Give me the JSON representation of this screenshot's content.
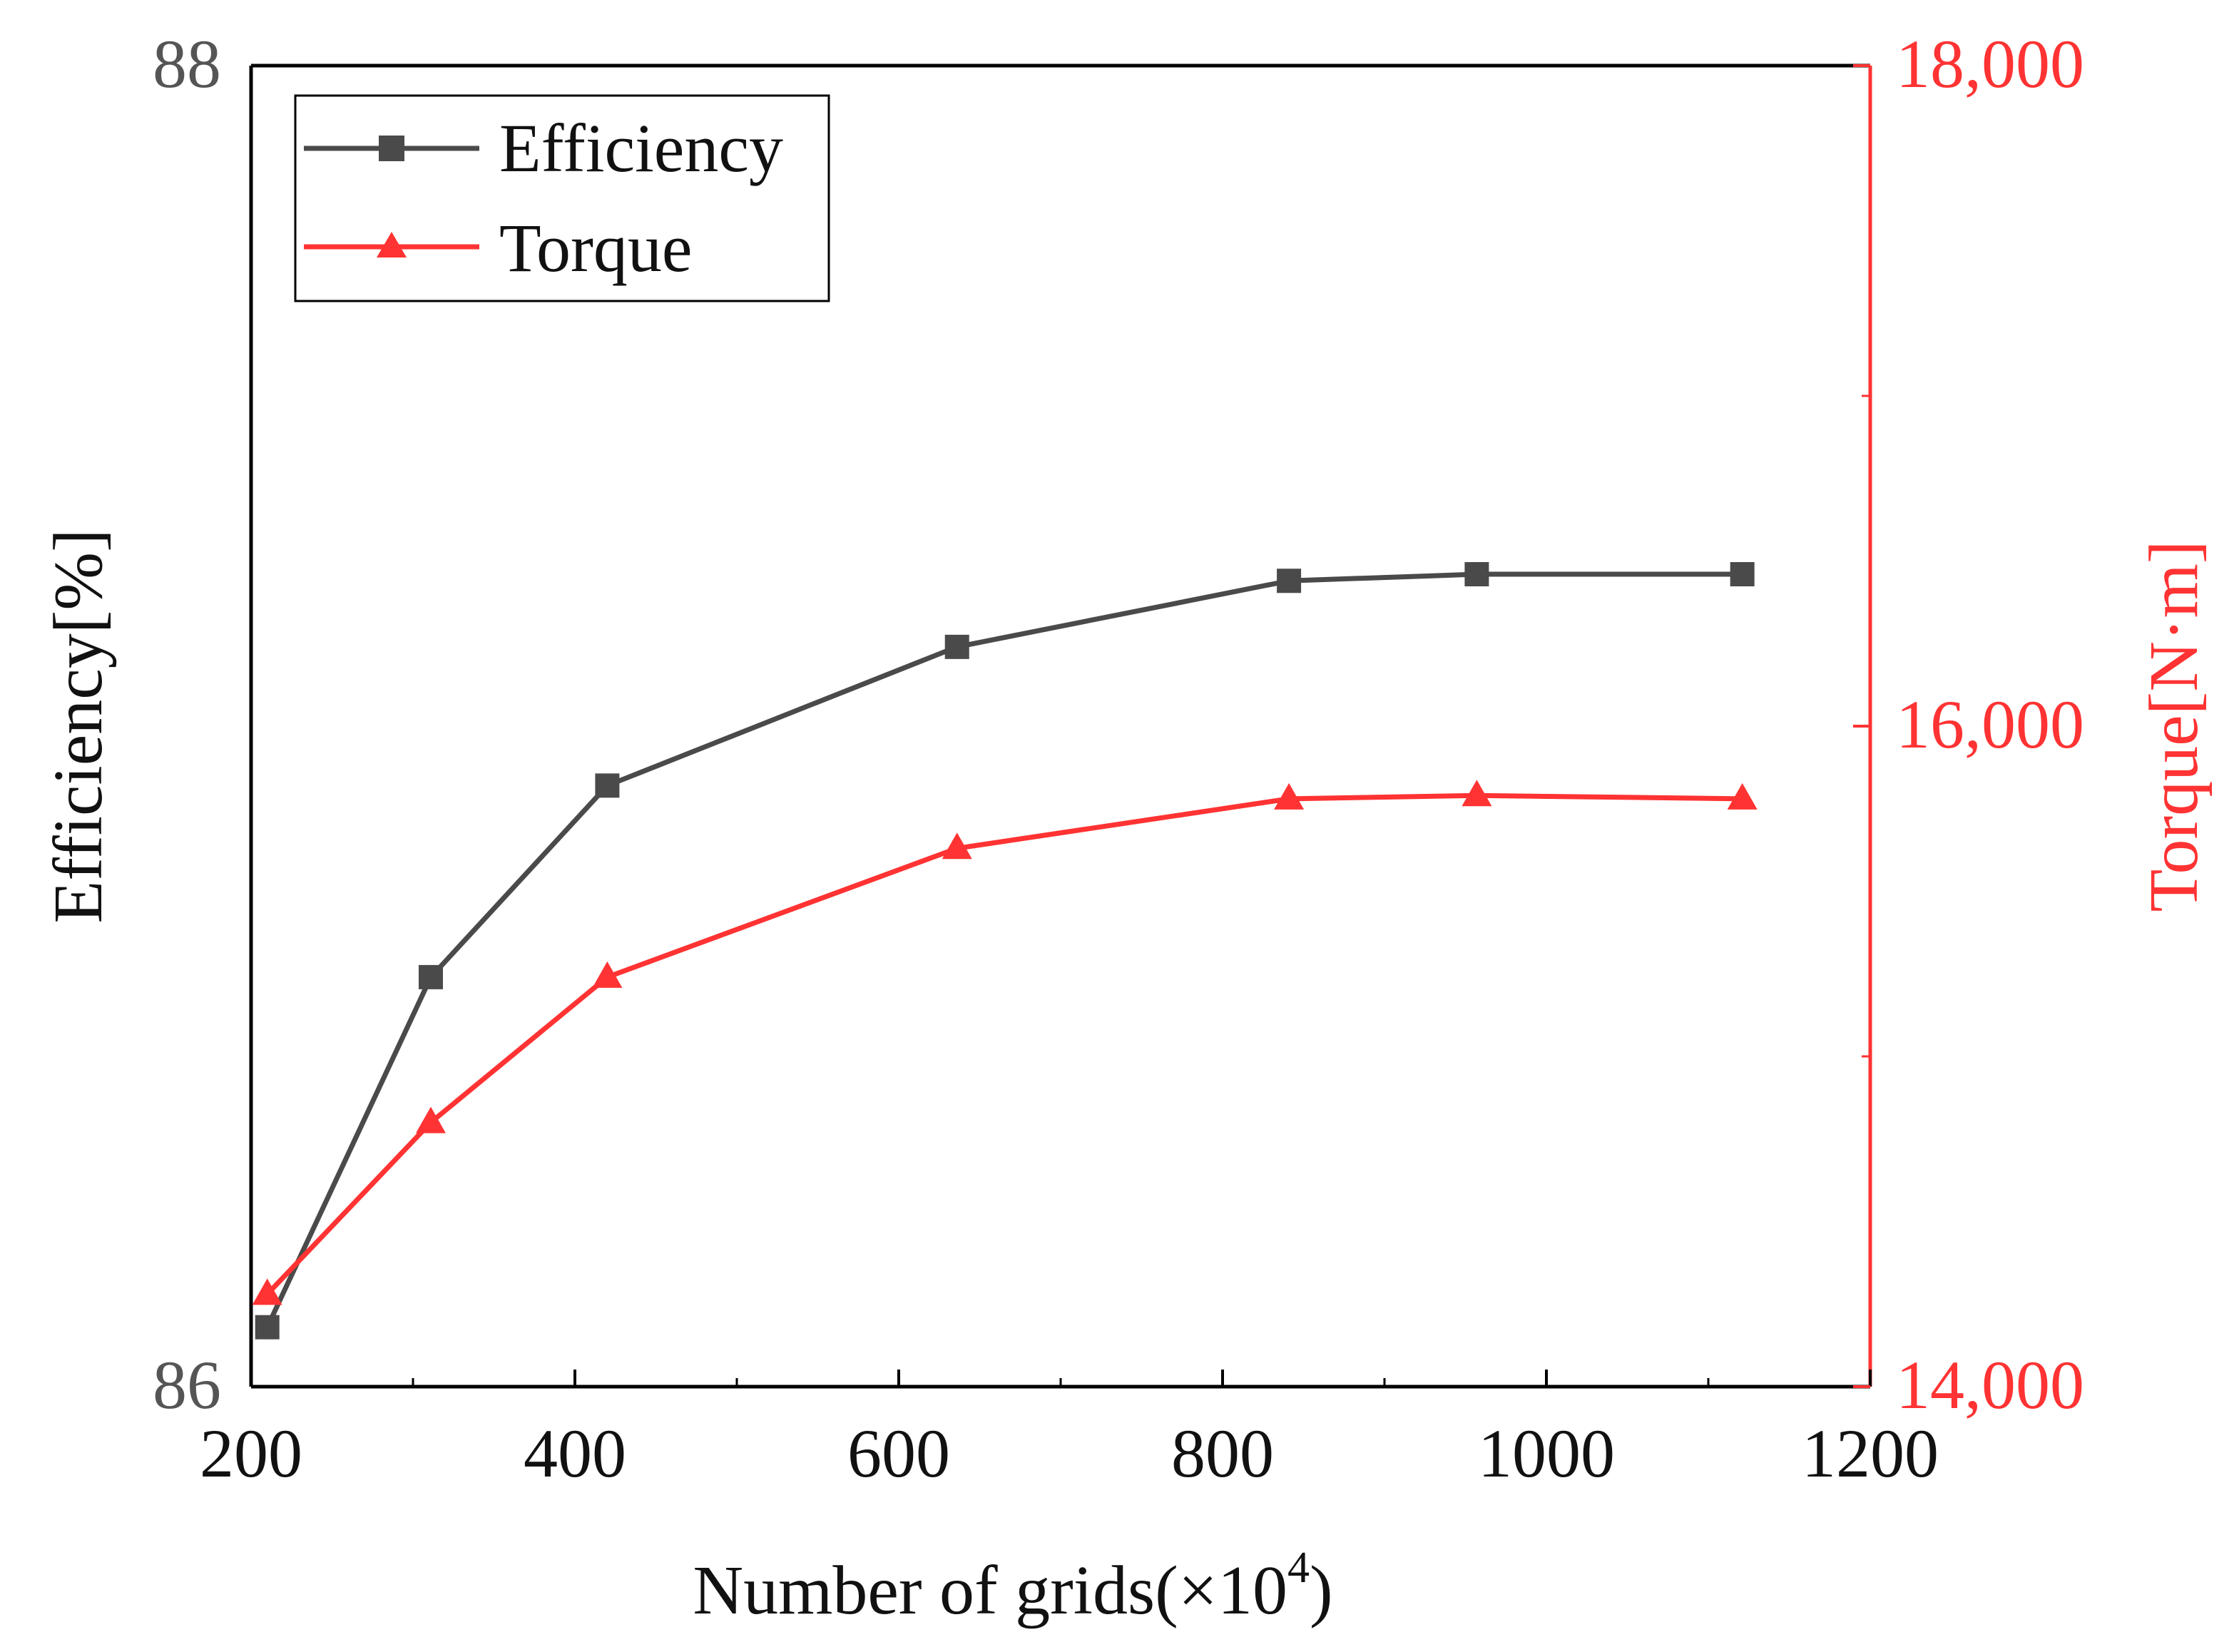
{
  "chart_data": {
    "type": "line",
    "title": "",
    "xlabel": "Number of grids(×10",
    "xlabel_exponent": "4",
    "xlabel_suffix": ")",
    "ylabel_left": "Efficiency[%]",
    "ylabel_right": "Torque[N·m]",
    "xlim": [
      200,
      1200
    ],
    "ylim_left": [
      86,
      88
    ],
    "ylim_right": [
      14000,
      18000
    ],
    "x_ticks": [
      200,
      400,
      600,
      800,
      1000,
      1200
    ],
    "x_tick_labels": [
      "200",
      "400",
      "600",
      "800",
      "1000",
      "1200"
    ],
    "y_left_ticks": [
      86,
      88
    ],
    "y_left_tick_labels": [
      "86",
      "88"
    ],
    "y_right_ticks": [
      14000,
      16000,
      18000
    ],
    "y_right_tick_labels": [
      "14,000",
      "16,000",
      "18,000"
    ],
    "grid": false,
    "legend_position": "top-left",
    "series": [
      {
        "name": "Efficiency",
        "axis": "left",
        "color": "#4a4a4a",
        "marker": "square",
        "x": [
          210,
          311,
          420,
          636,
          841,
          957,
          1121
        ],
        "values": [
          86.09,
          86.62,
          86.91,
          87.12,
          87.22,
          87.23,
          87.23
        ]
      },
      {
        "name": "Torque",
        "axis": "right",
        "color": "#ff3333",
        "marker": "triangle",
        "x": [
          210,
          311,
          420,
          636,
          841,
          957,
          1121
        ],
        "values": [
          14280,
          14800,
          15240,
          15630,
          15780,
          15790,
          15780
        ]
      }
    ]
  }
}
